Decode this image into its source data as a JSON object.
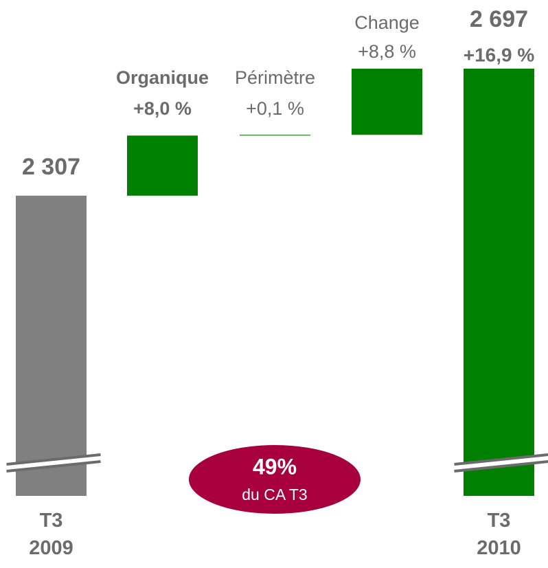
{
  "chart_data": {
    "type": "waterfall",
    "categories": [
      "T3 2009",
      "Organique",
      "Périmètre",
      "Change",
      "T3 2010"
    ],
    "kinds": [
      "total",
      "percent",
      "percent",
      "percent",
      "total"
    ],
    "values": [
      2307,
      8.0,
      0.1,
      8.8,
      2697
    ],
    "value_labels": [
      "2 307",
      "+8,0 %",
      "+0,1 %",
      "+8,8 %",
      "2 697"
    ],
    "total_change": 16.9,
    "total_change_label": "+16,9 %",
    "colors": [
      "#808080",
      "#008000",
      "#008000",
      "#008000",
      "#008000"
    ],
    "ylim": [
      1385,
      2697
    ],
    "axis_break": true,
    "annotation": {
      "title": "49%",
      "text": "du CA T3",
      "color": "#a8003c"
    }
  }
}
